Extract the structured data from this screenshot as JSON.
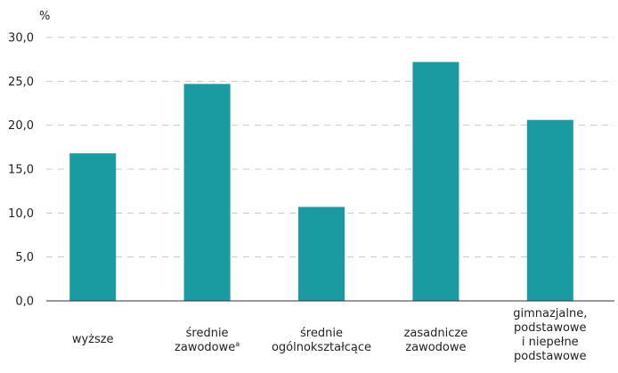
{
  "chart_data": {
    "type": "bar",
    "unit_label": "%",
    "categories": [
      {
        "lines": [
          "wyższe"
        ],
        "sup": ""
      },
      {
        "lines": [
          "średnie",
          "zawodowe"
        ],
        "sup": "a"
      },
      {
        "lines": [
          "średnie",
          "ogólnokształcące"
        ],
        "sup": ""
      },
      {
        "lines": [
          "zasadnicze",
          "zawodowe"
        ],
        "sup": ""
      },
      {
        "lines": [
          "gimnazjalne,",
          "podstawowe",
          "i niepełne",
          "podstawowe"
        ],
        "sup": ""
      }
    ],
    "values": [
      16.8,
      24.7,
      10.7,
      27.2,
      20.6
    ],
    "ylim": [
      0,
      30
    ],
    "yticks": [
      "0,0",
      "5,0",
      "10,0",
      "15,0",
      "20,0",
      "25,0",
      "30,0"
    ],
    "grid": true,
    "bar_color": "#1a9ba1",
    "grid_color": "#c8c8c8",
    "axis_color": "#333333"
  }
}
